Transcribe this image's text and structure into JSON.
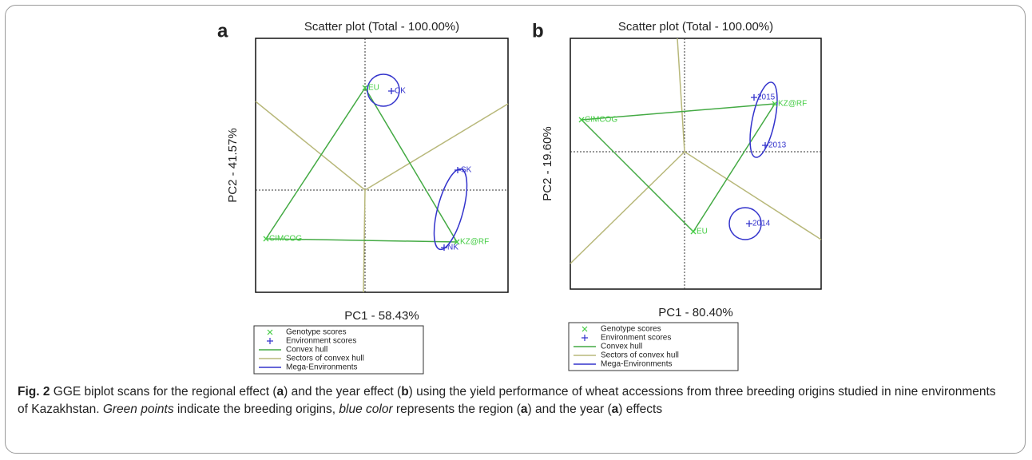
{
  "chart_data": [
    {
      "type": "scatter",
      "panel": "a",
      "title": "Scatter plot (Total - 100.00%)",
      "xlabel": "PC1 - 58.43%",
      "ylabel": "PC2 - 41.57%",
      "xlim": [
        -1.37,
        1.79
      ],
      "ylim": [
        -1.28,
        1.9
      ],
      "series": [
        {
          "name": "Genotype scores",
          "color": "#44cc44",
          "labels": [
            "EU",
            "KZ@RF",
            "CIMCOG"
          ],
          "x": [
            0,
            1.15,
            -1.24
          ],
          "y": [
            1.28,
            -0.65,
            -0.61
          ]
        },
        {
          "name": "Environment scores",
          "color": "#3333cc",
          "labels": [
            "CK",
            "SK",
            "NK"
          ],
          "x": [
            0.33,
            1.16,
            0.99
          ],
          "y": [
            1.24,
            0.25,
            -0.72
          ]
        }
      ],
      "hull": {
        "name": "Convex hull",
        "color": "#44aa44",
        "order": [
          0,
          1,
          2
        ]
      },
      "sectors": {
        "name": "Sectors of convex hull",
        "color": "#b8b87a",
        "x": [
          -1.37,
          1.79,
          -0.02
        ],
        "y": [
          1.11,
          1.08,
          -1.28
        ]
      },
      "mega": {
        "name": "Mega-Environments",
        "color": "#3333cc",
        "ellipses": [
          {
            "x": 0.23,
            "y": 1.25,
            "rx": 0.2,
            "ry": 0.2,
            "angle": 0
          },
          {
            "x": 1.07,
            "y": -0.24,
            "rx": 0.16,
            "ry": 0.52,
            "angle": 15
          }
        ]
      }
    },
    {
      "type": "scatter",
      "panel": "b",
      "title": "Scatter plot (Total - 100.00%)",
      "xlabel": "PC1 - 80.40%",
      "ylabel": "PC2 - 19.60%",
      "xlim": [
        -1.43,
        1.71
      ],
      "ylim": [
        -1.72,
        1.42
      ],
      "series": [
        {
          "name": "Genotype scores",
          "color": "#44cc44",
          "labels": [
            "CIMCOG",
            "KZ@RF",
            "EU"
          ],
          "x": [
            -1.29,
            1.13,
            0.11
          ],
          "y": [
            0.4,
            0.6,
            -1.0
          ]
        },
        {
          "name": "Environment scores",
          "color": "#3333cc",
          "labels": [
            "2015",
            "2013",
            "2014"
          ],
          "x": [
            0.87,
            1.01,
            0.81
          ],
          "y": [
            0.68,
            0.08,
            -0.9
          ]
        }
      ],
      "hull": {
        "name": "Convex hull",
        "color": "#44aa44",
        "order": [
          0,
          1,
          2
        ]
      },
      "sectors": {
        "name": "Sectors of convex hull",
        "color": "#b8b87a",
        "x": [
          -0.09,
          -1.43,
          1.71
        ],
        "y": [
          1.42,
          -1.4,
          -1.1
        ]
      },
      "mega": {
        "name": "Mega-Environments",
        "color": "#3333cc",
        "ellipses": [
          {
            "x": 0.76,
            "y": -0.9,
            "rx": 0.2,
            "ry": 0.2,
            "angle": 0
          },
          {
            "x": 0.99,
            "y": 0.4,
            "rx": 0.14,
            "ry": 0.48,
            "angle": 12
          }
        ]
      }
    }
  ],
  "caption": [
    {
      "text": "Fig. 2",
      "style": "bold"
    },
    {
      "text": " GGE biplot scans for the regional effect (",
      "style": "plain"
    },
    {
      "text": "a",
      "style": "bold"
    },
    {
      "text": ") and the year effect (",
      "style": "plain"
    },
    {
      "text": "b",
      "style": "bold"
    },
    {
      "text": ") using the yield performance of wheat accessions from three breeding origins studied in nine environments of Kazakhstan. ",
      "style": "plain"
    },
    {
      "text": "Green points",
      "style": "italic"
    },
    {
      "text": " indicate the breeding origins, ",
      "style": "plain"
    },
    {
      "text": "blue color",
      "style": "italic"
    },
    {
      "text": " represents the region (",
      "style": "plain"
    },
    {
      "text": "a",
      "style": "bold"
    },
    {
      "text": ") and the year (",
      "style": "plain"
    },
    {
      "text": "a",
      "style": "bold"
    },
    {
      "text": ") effects",
      "style": "plain"
    }
  ]
}
